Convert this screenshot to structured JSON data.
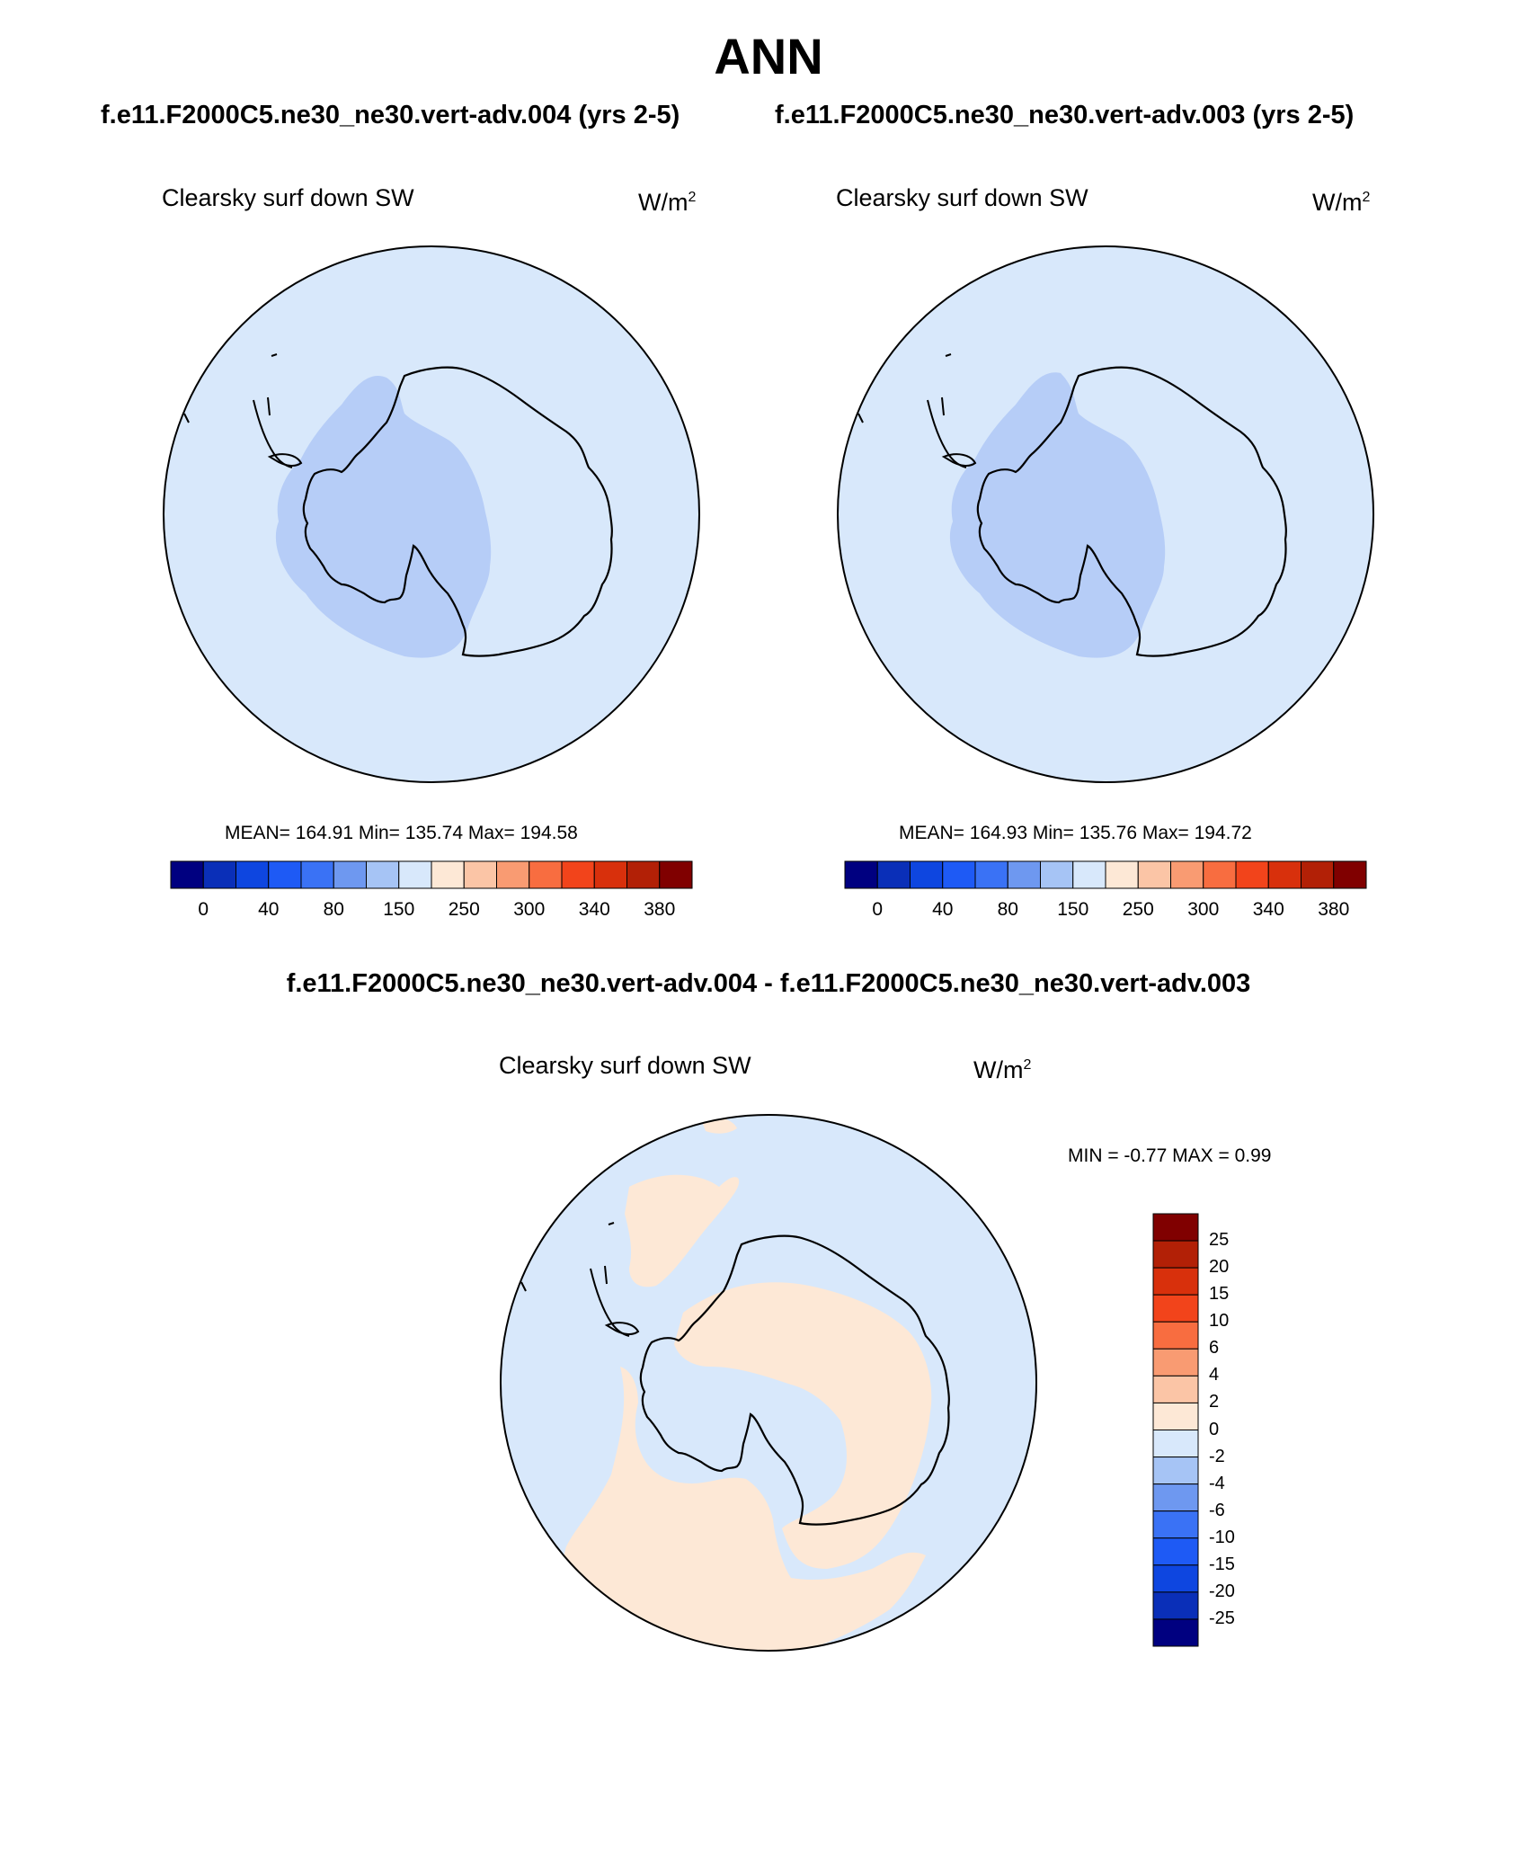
{
  "figure": {
    "season": "ANN",
    "case_test": "f.e11.F2000C5.ne30_ne30.vert-adv.004 (yrs 2-5)",
    "case_ref": "f.e11.F2000C5.ne30_ne30.vert-adv.003 (yrs 2-5)",
    "diff_title": "f.e11.F2000C5.ne30_ne30.vert-adv.004 - f.e11.F2000C5.ne30_ne30.vert-adv.003"
  },
  "panels": [
    {
      "variable": "Clearsky surf down SW",
      "units_base": "W/m",
      "units_exp": "2",
      "stats": "MEAN= 164.91  Min= 135.74  Max= 194.58"
    },
    {
      "variable": "Clearsky surf down SW",
      "units_base": "W/m",
      "units_exp": "2",
      "stats": "MEAN= 164.93  Min= 135.76  Max= 194.72"
    },
    {
      "variable": "Clearsky surf down SW",
      "units_base": "W/m",
      "units_exp": "2",
      "stats": "MIN =  -0.77 MAX =   0.99"
    }
  ],
  "colorbar_main": {
    "labels": [
      "0",
      "40",
      "80",
      "150",
      "250",
      "300",
      "340",
      "380"
    ],
    "colors": [
      "#000080",
      "#0a2fb8",
      "#0e46e0",
      "#1e5af5",
      "#3a72f5",
      "#6e98f0",
      "#a6c4f5",
      "#d8e8fb",
      "#fde8d6",
      "#fbc5a6",
      "#f99b72",
      "#f86d40",
      "#f2441b",
      "#d8300c",
      "#b22006",
      "#800000"
    ]
  },
  "colorbar_diff": {
    "labels": [
      "25",
      "20",
      "15",
      "10",
      "6",
      "4",
      "2",
      "0",
      "-2",
      "-4",
      "-6",
      "-10",
      "-15",
      "-20",
      "-25"
    ],
    "colors": [
      "#800000",
      "#b22006",
      "#d8300c",
      "#f2441b",
      "#f86d40",
      "#f99b72",
      "#fbc5a6",
      "#fde8d6",
      "#d8e8fb",
      "#a6c4f5",
      "#6e98f0",
      "#3a72f5",
      "#1e5af5",
      "#0e46e0",
      "#0a2fb8",
      "#000080"
    ]
  },
  "map_colors": {
    "ocean_field": "#d8e8fb",
    "low_field": "#b6cdf7",
    "positive_diff": "#fde8d6",
    "coast": "#000000"
  }
}
